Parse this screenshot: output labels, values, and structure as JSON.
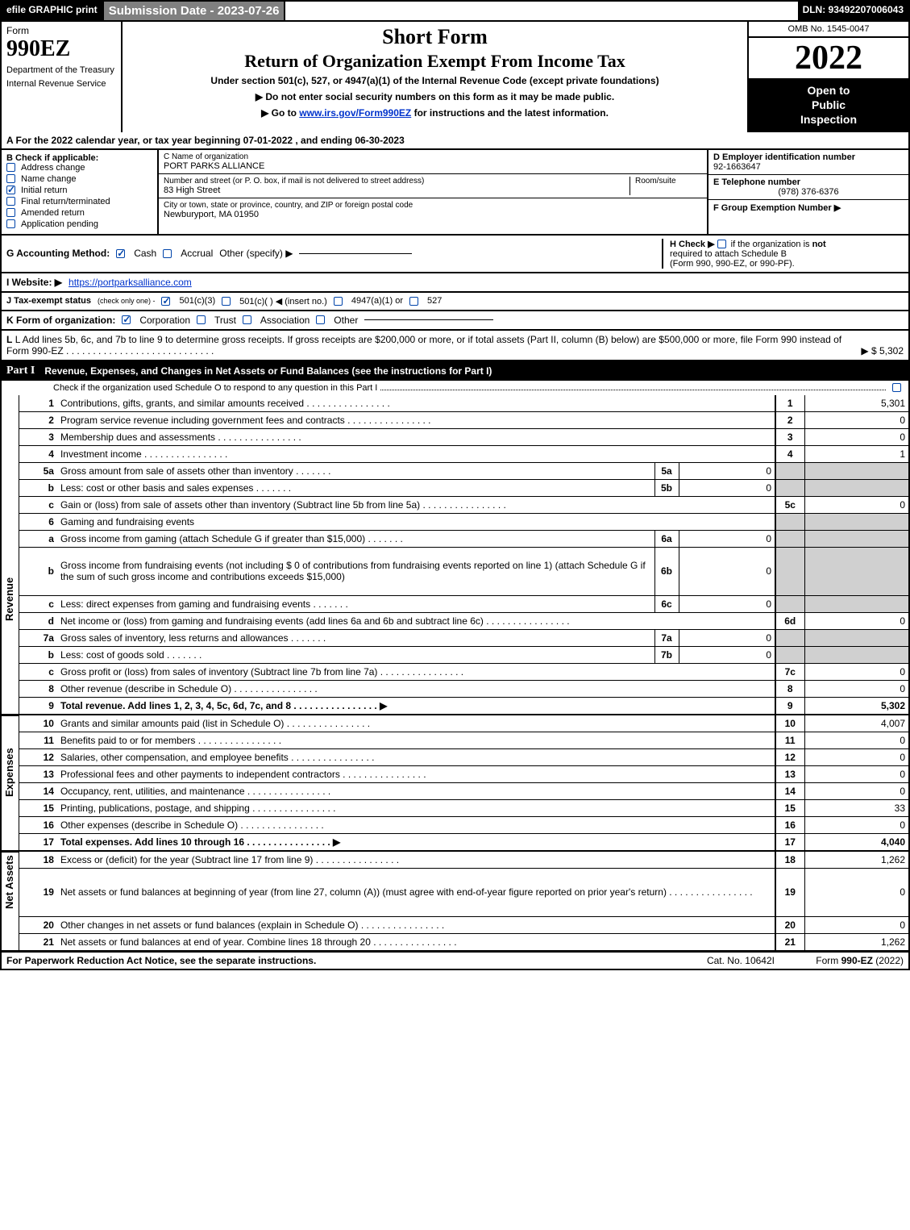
{
  "top": {
    "efile": "efile GRAPHIC print",
    "submission": "Submission Date - 2023-07-26",
    "dln": "DLN: 93492207006043"
  },
  "header": {
    "form_label": "Form",
    "form_number": "990EZ",
    "dept1": "Department of the Treasury",
    "dept2": "Internal Revenue Service",
    "title1": "Short Form",
    "title2": "Return of Organization Exempt From Income Tax",
    "subtitle": "Under section 501(c), 527, or 4947(a)(1) of the Internal Revenue Code (except private foundations)",
    "instr1": "▶ Do not enter social security numbers on this form as it may be made public.",
    "instr2_pre": "▶ Go to ",
    "instr2_link": "www.irs.gov/Form990EZ",
    "instr2_post": " for instructions and the latest information.",
    "omb": "OMB No. 1545-0047",
    "year": "2022",
    "open1": "Open to",
    "open2": "Public",
    "open3": "Inspection"
  },
  "section_a": "A  For the 2022 calendar year, or tax year beginning 07-01-2022  , and ending 06-30-2023",
  "b": {
    "label": "B  Check if applicable:",
    "items": [
      {
        "label": "Address change",
        "checked": false
      },
      {
        "label": "Name change",
        "checked": false
      },
      {
        "label": "Initial return",
        "checked": true
      },
      {
        "label": "Final return/terminated",
        "checked": false
      },
      {
        "label": "Amended return",
        "checked": false
      },
      {
        "label": "Application pending",
        "checked": false
      }
    ]
  },
  "c": {
    "name_lbl": "C Name of organization",
    "name": "PORT PARKS ALLIANCE",
    "addr_lbl": "Number and street (or P. O. box, if mail is not delivered to street address)",
    "room_lbl": "Room/suite",
    "addr": "83 High Street",
    "city_lbl": "City or town, state or province, country, and ZIP or foreign postal code",
    "city": "Newburyport, MA  01950"
  },
  "d": {
    "ein_lbl": "D Employer identification number",
    "ein": "92-1663647",
    "phone_lbl": "E Telephone number",
    "phone": "(978) 376-6376",
    "f_lbl": "F Group Exemption Number   ▶"
  },
  "g": {
    "label": "G Accounting Method:",
    "cash": "Cash",
    "accrual": "Accrual",
    "other": "Other (specify) ▶"
  },
  "h": {
    "text1": "H  Check ▶",
    "text2": "if the organization is",
    "text3": "not",
    "text4": "required to attach Schedule B",
    "text5": "(Form 990, 990-EZ, or 990-PF)."
  },
  "i": {
    "label": "I Website: ▶",
    "url": "https://portparksalliance.com"
  },
  "j": {
    "label": "J Tax-exempt status",
    "sub": "(check only one) -",
    "opt1": "501(c)(3)",
    "opt2": "501(c)(  ) ◀ (insert no.)",
    "opt3": "4947(a)(1) or",
    "opt4": "527"
  },
  "k": {
    "label": "K Form of organization:",
    "opts": [
      "Corporation",
      "Trust",
      "Association",
      "Other"
    ]
  },
  "l": {
    "text": "L Add lines 5b, 6c, and 7b to line 9 to determine gross receipts. If gross receipts are $200,000 or more, or if total assets (Part II, column (B) below) are $500,000 or more, file Form 990 instead of Form 990-EZ",
    "amount": "▶ $ 5,302"
  },
  "part1": {
    "label": "Part I",
    "title": "Revenue, Expenses, and Changes in Net Assets or Fund Balances (see the instructions for Part I)",
    "check": "Check if the organization used Schedule O to respond to any question in this Part I"
  },
  "side_labels": {
    "revenue": "Revenue",
    "expenses": "Expenses",
    "netassets": "Net Assets"
  },
  "lines": [
    {
      "no": "1",
      "desc": "Contributions, gifts, grants, and similar amounts received",
      "num": "1",
      "val": "5,301"
    },
    {
      "no": "2",
      "desc": "Program service revenue including government fees and contracts",
      "num": "2",
      "val": "0"
    },
    {
      "no": "3",
      "desc": "Membership dues and assessments",
      "num": "3",
      "val": "0"
    },
    {
      "no": "4",
      "desc": "Investment income",
      "num": "4",
      "val": "1"
    },
    {
      "no": "5a",
      "desc": "Gross amount from sale of assets other than inventory",
      "sub": "5a",
      "subval": "0",
      "shade": true
    },
    {
      "no": "b",
      "desc": "Less: cost or other basis and sales expenses",
      "sub": "5b",
      "subval": "0",
      "shade": true
    },
    {
      "no": "c",
      "desc": "Gain or (loss) from sale of assets other than inventory (Subtract line 5b from line 5a)",
      "num": "5c",
      "val": "0"
    },
    {
      "no": "6",
      "desc": "Gaming and fundraising events",
      "shade": true,
      "noval": true
    },
    {
      "no": "a",
      "desc": "Gross income from gaming (attach Schedule G if greater than $15,000)",
      "sub": "6a",
      "subval": "0",
      "shade": true
    },
    {
      "no": "b",
      "desc": "Gross income from fundraising events (not including $  0               of contributions from fundraising events reported on line 1) (attach Schedule G if the sum of such gross income and contributions exceeds $15,000)",
      "sub": "6b",
      "subval": "0",
      "shade": true,
      "tall": true
    },
    {
      "no": "c",
      "desc": "Less: direct expenses from gaming and fundraising events",
      "sub": "6c",
      "subval": "0",
      "shade": true
    },
    {
      "no": "d",
      "desc": "Net income or (loss) from gaming and fundraising events (add lines 6a and 6b and subtract line 6c)",
      "num": "6d",
      "val": "0"
    },
    {
      "no": "7a",
      "desc": "Gross sales of inventory, less returns and allowances",
      "sub": "7a",
      "subval": "0",
      "shade": true
    },
    {
      "no": "b",
      "desc": "Less: cost of goods sold",
      "sub": "7b",
      "subval": "0",
      "shade": true
    },
    {
      "no": "c",
      "desc": "Gross profit or (loss) from sales of inventory (Subtract line 7b from line 7a)",
      "num": "7c",
      "val": "0"
    },
    {
      "no": "8",
      "desc": "Other revenue (describe in Schedule O)",
      "num": "8",
      "val": "0"
    },
    {
      "no": "9",
      "desc": "Total revenue. Add lines 1, 2, 3, 4, 5c, 6d, 7c, and 8",
      "num": "9",
      "val": "5,302",
      "bold": true,
      "arrow": true
    }
  ],
  "exp": [
    {
      "no": "10",
      "desc": "Grants and similar amounts paid (list in Schedule O)",
      "num": "10",
      "val": "4,007"
    },
    {
      "no": "11",
      "desc": "Benefits paid to or for members",
      "num": "11",
      "val": "0"
    },
    {
      "no": "12",
      "desc": "Salaries, other compensation, and employee benefits",
      "num": "12",
      "val": "0"
    },
    {
      "no": "13",
      "desc": "Professional fees and other payments to independent contractors",
      "num": "13",
      "val": "0"
    },
    {
      "no": "14",
      "desc": "Occupancy, rent, utilities, and maintenance",
      "num": "14",
      "val": "0"
    },
    {
      "no": "15",
      "desc": "Printing, publications, postage, and shipping",
      "num": "15",
      "val": "33"
    },
    {
      "no": "16",
      "desc": "Other expenses (describe in Schedule O)",
      "num": "16",
      "val": "0"
    },
    {
      "no": "17",
      "desc": "Total expenses. Add lines 10 through 16",
      "num": "17",
      "val": "4,040",
      "bold": true,
      "arrow": true
    }
  ],
  "net": [
    {
      "no": "18",
      "desc": "Excess or (deficit) for the year (Subtract line 17 from line 9)",
      "num": "18",
      "val": "1,262"
    },
    {
      "no": "19",
      "desc": "Net assets or fund balances at beginning of year (from line 27, column (A)) (must agree with end-of-year figure reported on prior year's return)",
      "num": "19",
      "val": "0",
      "tall": true
    },
    {
      "no": "20",
      "desc": "Other changes in net assets or fund balances (explain in Schedule O)",
      "num": "20",
      "val": "0"
    },
    {
      "no": "21",
      "desc": "Net assets or fund balances at end of year. Combine lines 18 through 20",
      "num": "21",
      "val": "1,262"
    }
  ],
  "footer": {
    "paperwork": "For Paperwork Reduction Act Notice, see the separate instructions.",
    "cat": "Cat. No. 10642I",
    "formver_pre": "Form ",
    "formver_bold": "990-EZ",
    "formver_post": " (2022)"
  },
  "colors": {
    "black": "#000000",
    "white": "#ffffff",
    "gray_header": "#808080",
    "gray_shade": "#d0d0d0",
    "link_blue": "#0033cc",
    "check_blue": "#0044aa"
  }
}
